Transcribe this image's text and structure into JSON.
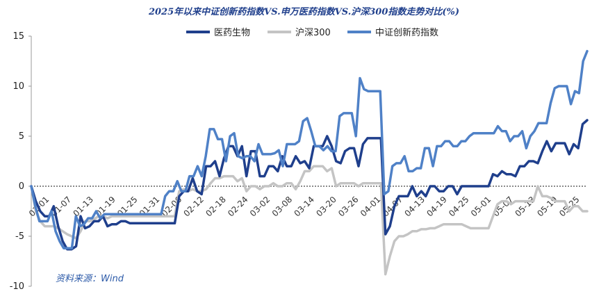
{
  "chart_data": {
    "type": "line",
    "title": "2025年以来中证创新药指数VS.申万医药指数VS.沪深300指数走势对比(%)",
    "xlabel": "",
    "ylabel": "",
    "ylim": [
      -10,
      15
    ],
    "yticks": [
      15,
      10,
      5,
      0,
      -5,
      -10
    ],
    "grid": false,
    "legend_position": "top",
    "source_text": "资料来源：Wind",
    "xtick_labels": [
      "01-01",
      "01-07",
      "01-13",
      "01-19",
      "01-25",
      "01-31",
      "02-06",
      "02-12",
      "02-18",
      "02-24",
      "03-02",
      "03-08",
      "03-14",
      "03-20",
      "03-26",
      "04-01",
      "04-07",
      "04-13",
      "04-19",
      "04-25",
      "05-01",
      "05-07",
      "05-13",
      "05-19",
      "05-25"
    ],
    "series": [
      {
        "name": "医药生物",
        "color": "#1f3f8c",
        "values": [
          0,
          -1.5,
          -2.5,
          -3,
          -3,
          -2,
          -4,
          -5.5,
          -6.3,
          -6.3,
          -6,
          -3,
          -4.2,
          -4,
          -3.5,
          -3.5,
          -3,
          -4,
          -3.8,
          -3.8,
          -3.5,
          -3.5,
          -3.7,
          -3.7,
          -3.7,
          -3.7,
          -3.7,
          -3.7,
          -3.7,
          -3.7,
          -3.7,
          -3.7,
          -3.7,
          -1,
          -0.5,
          -0.5,
          0.8,
          -0.5,
          -0.8,
          2,
          2,
          2.5,
          1,
          2.8,
          4,
          4,
          3,
          4,
          1,
          3.5,
          3.5,
          1,
          1,
          2,
          2,
          1.5,
          3,
          2,
          2,
          3,
          2.3,
          2.5,
          1.8,
          4,
          4,
          4,
          5,
          4,
          2.5,
          2.3,
          3.5,
          3.8,
          3.8,
          2,
          4.2,
          4.8,
          4.8,
          4.8,
          4.8,
          -4.8,
          -4,
          -2,
          -1,
          -1,
          -1,
          0,
          -1,
          -0.5,
          -1,
          0,
          0,
          -0.5,
          -0.5,
          0,
          0,
          -0.8,
          0,
          0,
          0,
          0,
          0,
          0,
          0,
          1.2,
          1,
          1.5,
          1.2,
          1.2,
          1,
          2,
          2,
          2.5,
          2.5,
          2.3,
          3.5,
          4.5,
          3.5,
          4.3,
          4.3,
          4.3,
          3.2,
          4.2,
          3.8,
          6.2,
          6.6
        ]
      },
      {
        "name": "沪深300",
        "color": "#c4c4c4",
        "values": [
          0,
          -2.5,
          -3.5,
          -4,
          -4,
          -4,
          -4.2,
          -4.5,
          -4.8,
          -5,
          -5.2,
          -4.5,
          -3.5,
          -3.5,
          -3.3,
          -3,
          -3,
          -3.2,
          -3,
          -3,
          -3,
          -3,
          -3,
          -3,
          -3,
          -3,
          -3,
          -3,
          -3,
          -3,
          -3,
          -3,
          -3,
          -0.5,
          -0.3,
          -0.5,
          -0.3,
          -0.5,
          -0.5,
          -0.3,
          0.3,
          0.8,
          0.8,
          1,
          1,
          1,
          0.5,
          0.8,
          -0.5,
          0,
          0,
          -0.3,
          0,
          0,
          0.3,
          0,
          0,
          0.3,
          0.3,
          -0.3,
          0.5,
          1.5,
          1.5,
          2,
          2,
          2,
          1.5,
          1.8,
          0,
          0.3,
          0.3,
          0.3,
          0.3,
          0,
          0.3,
          0.3,
          0.3,
          0.3,
          0.3,
          -8.8,
          -7,
          -5.5,
          -5,
          -5,
          -4.8,
          -4.5,
          -4.5,
          -4.3,
          -4.3,
          -4.2,
          -4.2,
          -4,
          -3.8,
          -3.8,
          -3.8,
          -3.8,
          -3.8,
          -4,
          -4.2,
          -4.2,
          -4.2,
          -4.2,
          -4.2,
          -3,
          -1.8,
          -1.5,
          -1.5,
          -1.8,
          -1.5,
          -1.5,
          -1.5,
          -1.5,
          -1.5,
          0,
          -1,
          -1,
          -1.2,
          -1.5,
          -1.5,
          -1.5,
          -2.5,
          -2,
          -2,
          -2.5,
          -2.5
        ]
      },
      {
        "name": "中证创新药指数",
        "color": "#4f81c7",
        "values": [
          0,
          -2,
          -3.5,
          -3.5,
          -3.5,
          -2.5,
          -4.5,
          -5.5,
          -6.2,
          -6.2,
          -6.2,
          -3,
          -4,
          -3.8,
          -3.2,
          -3.2,
          -2.5,
          -3.2,
          -2.8,
          -2.8,
          -2.8,
          -2.8,
          -2.8,
          -2.8,
          -2.8,
          -2.8,
          -2.8,
          -2.8,
          -2.8,
          -2.8,
          -2.8,
          -2.8,
          -2.8,
          -1,
          -0.5,
          -0.5,
          0.5,
          -0.5,
          -0.5,
          1,
          1,
          2,
          1,
          3,
          5.7,
          5.7,
          4.7,
          4.7,
          2.5,
          5,
          5.3,
          3,
          2.8,
          3,
          3,
          2.5,
          4.2,
          3.2,
          3.2,
          3.2,
          3.3,
          3.6,
          2,
          4.2,
          4.2,
          4.2,
          4.5,
          6.5,
          6.8,
          5.5,
          4,
          4,
          3.6,
          4,
          3.5,
          3.5,
          7,
          7.3,
          7.3,
          7.3,
          5,
          10.8,
          9.7,
          9.5,
          9.5,
          9.5,
          9.5,
          -0.8,
          -0.5,
          2,
          2.3,
          2.3,
          3,
          1.5,
          1.5,
          1.8,
          1.8,
          3.8,
          3.8,
          2,
          4,
          4,
          4.5,
          4.5,
          4,
          4,
          4.5,
          4.5,
          5,
          5.3,
          5.3,
          5.3,
          5.3,
          5.3,
          5.3,
          6,
          5.5,
          5.5,
          4.5,
          5,
          5,
          5.5,
          3.8,
          5,
          5.5,
          6.3,
          6.3,
          6.3,
          8.3,
          9.8,
          10,
          10,
          10,
          8.2,
          9.5,
          9.3,
          12.5,
          13.5
        ]
      }
    ]
  }
}
